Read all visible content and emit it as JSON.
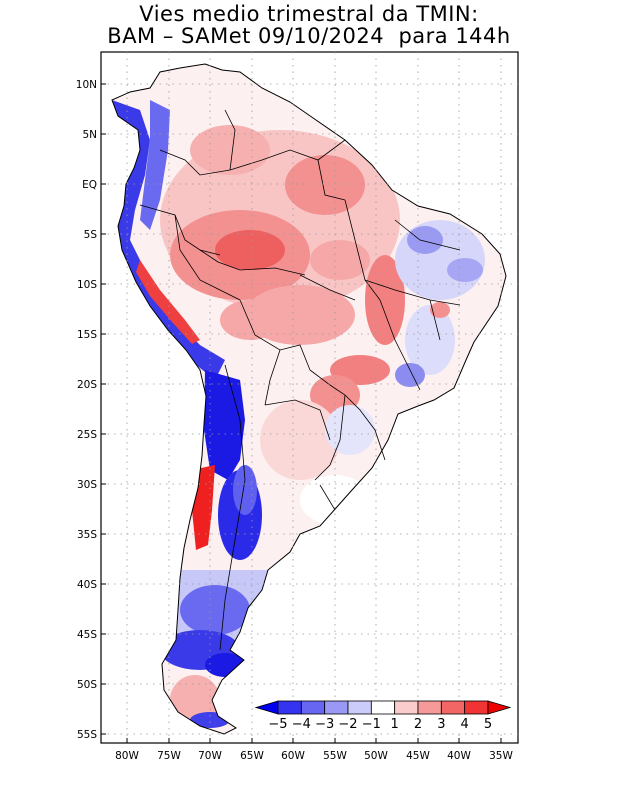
{
  "title_line1": "Vies medio trimestral da TMIN:",
  "title_line2": "BAM – SAMet 09/10/2024  para 144h",
  "lat_labels": [
    "10N",
    "5N",
    "EQ",
    "5S",
    "10S",
    "15S",
    "20S",
    "25S",
    "30S",
    "35S",
    "40S",
    "45S",
    "50S",
    "55S"
  ],
  "lon_labels": [
    "80W",
    "75W",
    "70W",
    "65W",
    "60W",
    "55W",
    "50W",
    "45W",
    "40W",
    "35W"
  ],
  "colorbar": {
    "labels": [
      "−5",
      "−4",
      "−3",
      "−2",
      "−1",
      "1",
      "2",
      "3",
      "4",
      "5"
    ],
    "colors": [
      "#0000ee",
      "#3333f0",
      "#6666f2",
      "#9999f5",
      "#ccccfa",
      "#ffffff",
      "#facccc",
      "#f59999",
      "#f26666",
      "#f03333",
      "#ee0000"
    ]
  },
  "map": {
    "lon_range": [
      -82.5,
      -34.5
    ],
    "lat_range": [
      -56,
      13
    ],
    "grid": "dotted",
    "field": "TMIN bias",
    "variable_colors": {
      "negative": "#2a2ae8",
      "positive": "#e82a2a"
    }
  }
}
